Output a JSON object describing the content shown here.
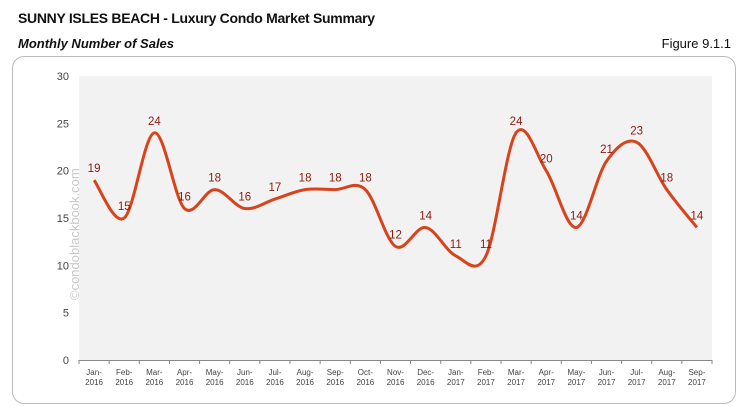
{
  "header": {
    "title": "SUNNY ISLES BEACH - Luxury Condo Market Summary",
    "subtitle": "Monthly Number of Sales",
    "figure": "Figure 9.1.1"
  },
  "watermark": "©condoblackbook.com",
  "chart_data": {
    "type": "line",
    "categories": [
      "Jan-2016",
      "Feb-2016",
      "Mar-2016",
      "Apr-2016",
      "May-2016",
      "Jun-2016",
      "Jul-2016",
      "Aug-2016",
      "Sep-2016",
      "Oct-2016",
      "Nov-2016",
      "Dec-2016",
      "Jan-2017",
      "Feb-2017",
      "Mar-2017",
      "Apr-2017",
      "May-2017",
      "Jun-2017",
      "Jul-2017",
      "Aug-2017",
      "Sep-2017"
    ],
    "values": [
      19,
      15,
      24,
      16,
      18,
      16,
      17,
      18,
      18,
      18,
      12,
      14,
      11,
      11,
      24,
      20,
      14,
      21,
      23,
      18,
      14
    ],
    "ylim": [
      0,
      30
    ],
    "yticks": [
      0,
      5,
      10,
      15,
      20,
      25,
      30
    ],
    "grid": false,
    "smooth": true,
    "data_labels": true,
    "colors": {
      "line": "#d8431c",
      "labels": "#8b1a10",
      "plot_bg": "#f2f2f2"
    }
  }
}
